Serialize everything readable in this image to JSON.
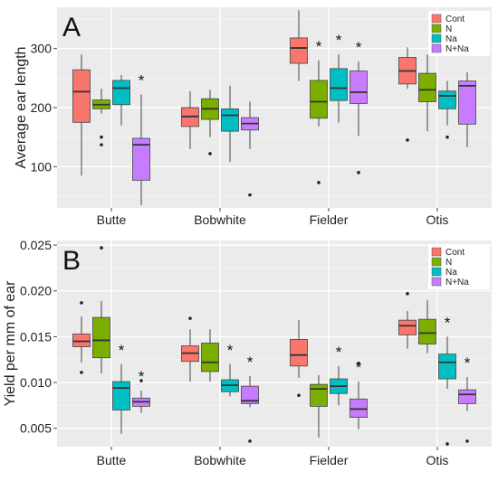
{
  "chart_data": [
    {
      "type": "box",
      "panel_label": "A",
      "ylabel": "Average ear length",
      "categories": [
        "Butte",
        "Bobwhite",
        "Fielder",
        "Otis"
      ],
      "ylim": [
        30,
        370
      ],
      "yticks": [
        100,
        200,
        300
      ],
      "ytick_labels": [
        "100",
        "200",
        "300"
      ],
      "grid": true,
      "legend_position": "top-right",
      "series": [
        {
          "name": "Cont",
          "color": "#F8766D",
          "boxes": [
            {
              "min": 85,
              "q1": 175,
              "median": 227,
              "q3": 264,
              "max": 290,
              "outliers": []
            },
            {
              "min": 130,
              "q1": 168,
              "median": 185,
              "q3": 200,
              "max": 228,
              "outliers": []
            },
            {
              "min": 245,
              "q1": 275,
              "median": 301,
              "q3": 318,
              "max": 365,
              "outliers": []
            },
            {
              "min": 232,
              "q1": 240,
              "median": 262,
              "q3": 285,
              "max": 302,
              "outliers": [
                145
              ]
            }
          ]
        },
        {
          "name": "N",
          "color": "#7CAE00",
          "boxes": [
            {
              "min": 190,
              "q1": 198,
              "median": 205,
              "q3": 213,
              "max": 232,
              "outliers": [
                150,
                137
              ]
            },
            {
              "min": 150,
              "q1": 180,
              "median": 198,
              "q3": 215,
              "max": 230,
              "outliers": [
                122
              ]
            },
            {
              "min": 168,
              "q1": 182,
              "median": 210,
              "q3": 246,
              "max": 280,
              "outliers": [
                73
              ]
            },
            {
              "min": 160,
              "q1": 210,
              "median": 230,
              "q3": 258,
              "max": 290,
              "outliers": []
            }
          ]
        },
        {
          "name": "Na",
          "color": "#00BFC4",
          "boxes": [
            {
              "min": 170,
              "q1": 205,
              "median": 233,
              "q3": 246,
              "max": 255,
              "outliers": []
            },
            {
              "min": 108,
              "q1": 160,
              "median": 187,
              "q3": 198,
              "max": 237,
              "outliers": []
            },
            {
              "min": 175,
              "q1": 212,
              "median": 233,
              "q3": 266,
              "max": 290,
              "outliers": []
            },
            {
              "min": 170,
              "q1": 198,
              "median": 220,
              "q3": 228,
              "max": 245,
              "outliers": [
                150
              ]
            }
          ]
        },
        {
          "name": "N+Na",
          "color": "#C77CFF",
          "boxes": [
            {
              "min": 35,
              "q1": 77,
              "median": 137,
              "q3": 148,
              "max": 222,
              "outliers": []
            },
            {
              "min": 130,
              "q1": 162,
              "median": 173,
              "q3": 183,
              "max": 210,
              "outliers": [
                52
              ]
            },
            {
              "min": 152,
              "q1": 207,
              "median": 226,
              "q3": 262,
              "max": 278,
              "outliers": [
                90
              ]
            },
            {
              "min": 133,
              "q1": 172,
              "median": 237,
              "q3": 245,
              "max": 260,
              "outliers": []
            }
          ]
        }
      ],
      "significance_markers": [
        {
          "category": "Butte",
          "series": "N+Na",
          "label": "*"
        },
        {
          "category": "Fielder",
          "series": "N",
          "label": "*"
        },
        {
          "category": "Fielder",
          "series": "Na",
          "label": "*"
        },
        {
          "category": "Fielder",
          "series": "N+Na",
          "label": "*"
        }
      ]
    },
    {
      "type": "box",
      "panel_label": "B",
      "ylabel": "Yield per mm of ear",
      "categories": [
        "Butte",
        "Bobwhite",
        "Fielder",
        "Otis"
      ],
      "ylim": [
        0.003,
        0.0255
      ],
      "yticks": [
        0.005,
        0.01,
        0.015,
        0.02,
        0.025
      ],
      "ytick_labels": [
        "0.005",
        "0.010",
        "0.015",
        "0.020",
        "0.025"
      ],
      "grid": true,
      "legend_position": "top-right",
      "series": [
        {
          "name": "Cont",
          "color": "#F8766D",
          "boxes": [
            {
              "min": 0.0122,
              "q1": 0.0139,
              "median": 0.0145,
              "q3": 0.0153,
              "max": 0.0172,
              "outliers": [
                0.0187,
                0.0111
              ]
            },
            {
              "min": 0.0101,
              "q1": 0.0123,
              "median": 0.0132,
              "q3": 0.014,
              "max": 0.0158,
              "outliers": [
                0.017
              ]
            },
            {
              "min": 0.0105,
              "q1": 0.0118,
              "median": 0.013,
              "q3": 0.0147,
              "max": 0.0168,
              "outliers": [
                0.0086
              ]
            },
            {
              "min": 0.0137,
              "q1": 0.0152,
              "median": 0.0162,
              "q3": 0.0168,
              "max": 0.0178,
              "outliers": [
                0.0197
              ]
            }
          ]
        },
        {
          "name": "N",
          "color": "#7CAE00",
          "boxes": [
            {
              "min": 0.011,
              "q1": 0.0127,
              "median": 0.0146,
              "q3": 0.0171,
              "max": 0.0189,
              "outliers": [
                0.0247
              ]
            },
            {
              "min": 0.0101,
              "q1": 0.0112,
              "median": 0.0122,
              "q3": 0.0143,
              "max": 0.0158,
              "outliers": []
            },
            {
              "min": 0.004,
              "q1": 0.0074,
              "median": 0.0093,
              "q3": 0.0098,
              "max": 0.0108,
              "outliers": []
            },
            {
              "min": 0.0132,
              "q1": 0.0142,
              "median": 0.0154,
              "q3": 0.0169,
              "max": 0.019,
              "outliers": []
            }
          ]
        },
        {
          "name": "Na",
          "color": "#00BFC4",
          "boxes": [
            {
              "min": 0.0044,
              "q1": 0.007,
              "median": 0.0094,
              "q3": 0.0101,
              "max": 0.012,
              "outliers": []
            },
            {
              "min": 0.0085,
              "q1": 0.009,
              "median": 0.0097,
              "q3": 0.0103,
              "max": 0.012,
              "outliers": []
            },
            {
              "min": 0.0075,
              "q1": 0.0088,
              "median": 0.0096,
              "q3": 0.0104,
              "max": 0.0118,
              "outliers": []
            },
            {
              "min": 0.0093,
              "q1": 0.0104,
              "median": 0.0122,
              "q3": 0.0131,
              "max": 0.015,
              "outliers": [
                0.0033
              ]
            }
          ]
        },
        {
          "name": "N+Na",
          "color": "#C77CFF",
          "boxes": [
            {
              "min": 0.0067,
              "q1": 0.0074,
              "median": 0.0079,
              "q3": 0.0083,
              "max": 0.0091,
              "outliers": [
                0.0102
              ]
            },
            {
              "min": 0.0073,
              "q1": 0.0077,
              "median": 0.008,
              "q3": 0.0096,
              "max": 0.0107,
              "outliers": [
                0.0036
              ]
            },
            {
              "min": 0.0049,
              "q1": 0.0062,
              "median": 0.0071,
              "q3": 0.0082,
              "max": 0.0101,
              "outliers": [
                0.0121
              ]
            },
            {
              "min": 0.0069,
              "q1": 0.0077,
              "median": 0.0087,
              "q3": 0.0092,
              "max": 0.0106,
              "outliers": [
                0.0036
              ]
            }
          ]
        }
      ],
      "significance_markers": [
        {
          "category": "Butte",
          "series": "Na",
          "label": "*"
        },
        {
          "category": "Butte",
          "series": "N+Na",
          "label": "*"
        },
        {
          "category": "Bobwhite",
          "series": "Na",
          "label": "*"
        },
        {
          "category": "Bobwhite",
          "series": "N+Na",
          "label": "*"
        },
        {
          "category": "Fielder",
          "series": "Na",
          "label": "*"
        },
        {
          "category": "Fielder",
          "series": "N+Na",
          "label": "*"
        },
        {
          "category": "Otis",
          "series": "Na",
          "label": "*"
        },
        {
          "category": "Otis",
          "series": "N+Na",
          "label": "*"
        }
      ]
    }
  ]
}
